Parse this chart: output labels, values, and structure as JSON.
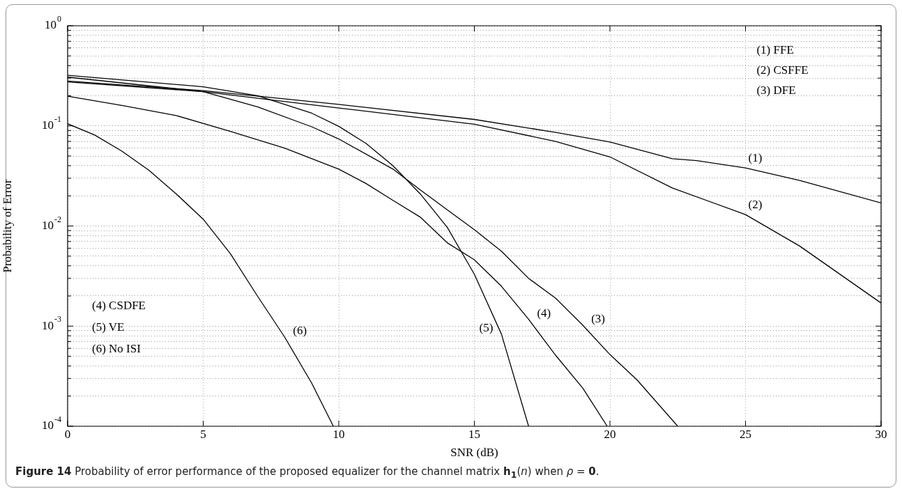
{
  "chart_data": {
    "type": "line",
    "xlabel": "SNR (dB)",
    "ylabel": "Probability of Error",
    "log": "y",
    "grid": true,
    "legend": false,
    "marker": "none",
    "line_style": "solid",
    "xlim": [
      0,
      30
    ],
    "xticks": [
      0,
      5,
      10,
      15,
      20,
      25,
      30
    ],
    "ylim": [
      0.0001,
      1
    ],
    "yticks": [
      {
        "value": 0.0001,
        "label": "10$^{-4}$"
      },
      {
        "value": 0.0002,
        "label": null
      },
      {
        "value": 0.0003,
        "label": null
      },
      {
        "value": 0.0004,
        "label": null
      },
      {
        "value": 0.0005,
        "label": null
      },
      {
        "value": 0.0006,
        "label": null
      },
      {
        "value": 0.0007,
        "label": null
      },
      {
        "value": 0.0008,
        "label": null
      },
      {
        "value": 0.0009,
        "label": null
      },
      {
        "value": 0.001,
        "label": "10$^{-3}$"
      },
      {
        "value": 0.002,
        "label": null
      },
      {
        "value": 0.003,
        "label": null
      },
      {
        "value": 0.004,
        "label": null
      },
      {
        "value": 0.005,
        "label": null
      },
      {
        "value": 0.006,
        "label": null
      },
      {
        "value": 0.007,
        "label": null
      },
      {
        "value": 0.008,
        "label": null
      },
      {
        "value": 0.009,
        "label": null
      },
      {
        "value": 0.01,
        "label": "10$^{-2}$"
      },
      {
        "value": 0.02,
        "label": null
      },
      {
        "value": 0.03,
        "label": null
      },
      {
        "value": 0.04,
        "label": null
      },
      {
        "value": 0.05,
        "label": null
      },
      {
        "value": 0.06,
        "label": null
      },
      {
        "value": 0.07,
        "label": null
      },
      {
        "value": 0.08,
        "label": null
      },
      {
        "value": 0.09,
        "label": null
      },
      {
        "value": 0.1,
        "label": "10$^{-1}$"
      },
      {
        "value": 0.2,
        "label": null
      },
      {
        "value": 0.3,
        "label": null
      },
      {
        "value": 0.4,
        "label": null
      },
      {
        "value": 0.5,
        "label": null
      },
      {
        "value": 0.6,
        "label": null
      },
      {
        "value": 0.7,
        "label": null
      },
      {
        "value": 0.8,
        "label": null
      },
      {
        "value": 0.9,
        "label": null
      },
      {
        "value": 1,
        "label": "10$^{0}$"
      }
    ],
    "series": [
      {
        "color": "#000000",
        "x": [
          0,
          5,
          10,
          15,
          18,
          20,
          22.3,
          23.2,
          25,
          27,
          30
        ],
        "values": [
          0.28,
          0.225,
          0.164,
          0.116,
          0.086,
          0.069,
          0.047,
          0.045,
          0.038,
          0.0285,
          0.017
        ]
      },
      {
        "color": "#000000",
        "x": [
          0,
          5,
          10,
          15,
          18,
          20,
          22.3,
          25,
          27,
          30
        ],
        "values": [
          0.275,
          0.22,
          0.151,
          0.104,
          0.07,
          0.049,
          0.024,
          0.013,
          0.0063,
          0.0017
        ]
      },
      {
        "color": "#000000",
        "x": [
          0,
          5,
          7,
          9,
          10,
          12,
          13,
          14,
          15,
          16,
          17,
          18,
          19,
          20,
          21,
          22.5
        ],
        "values": [
          0.307,
          0.22,
          0.155,
          0.098,
          0.074,
          0.037,
          0.023,
          0.0145,
          0.0092,
          0.0056,
          0.003,
          0.0019,
          0.00102,
          0.00052,
          0.00029,
          0.0001
        ]
      },
      {
        "color": "#000000",
        "x": [
          0,
          2,
          4,
          6,
          8,
          10,
          11,
          12,
          13,
          14,
          15,
          16,
          17,
          18,
          19,
          19.9
        ],
        "values": [
          0.198,
          0.16,
          0.127,
          0.088,
          0.06,
          0.037,
          0.0266,
          0.018,
          0.0123,
          0.0068,
          0.0046,
          0.0025,
          0.00117,
          0.00051,
          0.00024,
          0.0001
        ]
      },
      {
        "color": "#000000",
        "x": [
          0,
          5,
          7,
          9,
          10,
          11,
          12,
          13,
          14,
          15,
          16,
          17
        ],
        "values": [
          0.32,
          0.246,
          0.2,
          0.134,
          0.099,
          0.067,
          0.04,
          0.021,
          0.0097,
          0.0033,
          0.00083,
          0.0001
        ]
      },
      {
        "color": "#000000",
        "x": [
          0,
          1,
          2,
          3,
          4,
          5,
          6,
          7,
          8,
          9,
          9.8
        ],
        "values": [
          0.105,
          0.081,
          0.056,
          0.036,
          0.021,
          0.0117,
          0.0053,
          0.002,
          0.00078,
          0.00027,
          0.0001
        ]
      }
    ],
    "annotations": [
      "(1) FFE",
      "(2) CSFFE",
      "(3) DFE",
      "(4) CSDFE",
      "(5) VE",
      "(6) No ISI",
      {
        "text": "(1)",
        "x": 25,
        "y": 0.038
      },
      {
        "text": "(2)",
        "x": 25,
        "y": 0.013
      },
      {
        "text": "(3)",
        "x": 19,
        "y": 0.00102
      },
      {
        "text": "(4)",
        "x": 17,
        "y": 0.00117
      },
      {
        "text": "(5)",
        "x": 16,
        "y": 0.00083
      },
      {
        "text": "(6)",
        "x": 8,
        "y": 0.00078
      },
      "**Figure 14** Probability of error performance of the proposed equalizer for the channel matrix **h$_{1}$**(*n*) when *ρ* = **0**."
    ]
  }
}
